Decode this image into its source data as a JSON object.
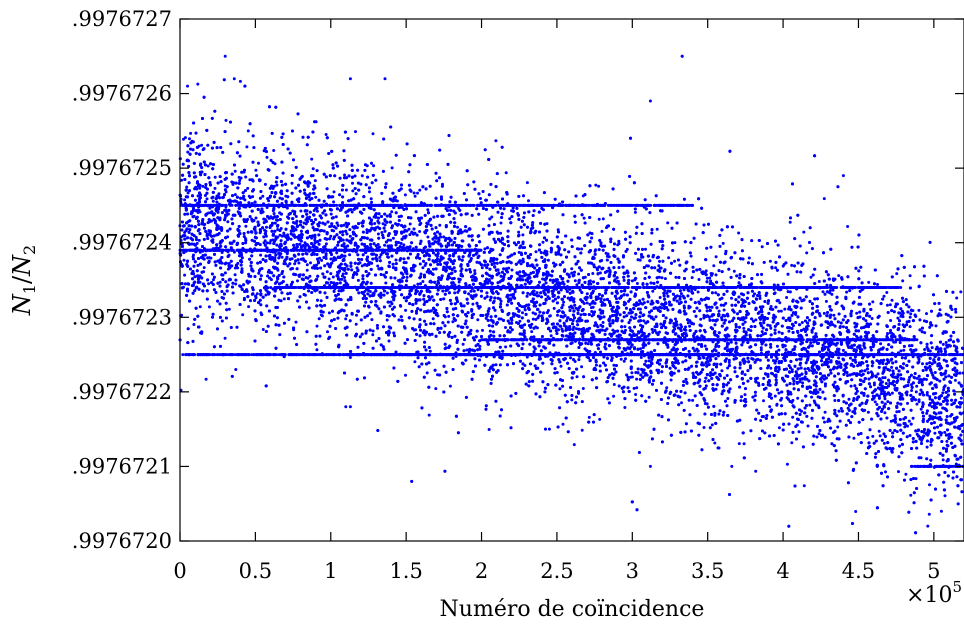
{
  "chart_data": {
    "type": "scatter",
    "title": "",
    "xlabel": "Numéro de coïncidence",
    "ylabel": {
      "base1": "N",
      "sub1": "1",
      "slash": "/",
      "base2": "N",
      "sub2": "2"
    },
    "x_multiplier": {
      "prefix": "×10",
      "exponent": "5"
    },
    "xlim": [
      0,
      5.2
    ],
    "ylim": [
      0.997672,
      0.9976727
    ],
    "x_ticks": [
      0,
      0.5,
      1,
      1.5,
      2,
      2.5,
      3,
      3.5,
      4,
      4.5,
      5
    ],
    "x_tick_labels": [
      "0",
      "0.5",
      "1",
      "1.5",
      "2",
      "2.5",
      "3",
      "3.5",
      "4",
      "4.5",
      "5"
    ],
    "y_ticks": [
      0.997672,
      0.9976721,
      0.9976722,
      0.9976723,
      0.9976724,
      0.9976725,
      0.9976726,
      0.9976727
    ],
    "y_tick_labels": [
      ".9976720",
      ".9976721",
      ".9976722",
      ".9976723",
      ".9976724",
      ".9976725",
      ".9976726",
      ".9976727"
    ],
    "grid": false,
    "marker_color": "#0000ff",
    "trend": [
      {
        "x": 0,
        "y": 0.99767242
      },
      {
        "x": 1,
        "y": 0.9976724
      },
      {
        "x": 2,
        "y": 0.99767234
      },
      {
        "x": 3,
        "y": 0.9976723
      },
      {
        "x": 4,
        "y": 0.99767226
      },
      {
        "x": 4.5,
        "y": 0.99767224
      },
      {
        "x": 5,
        "y": 0.9976722
      },
      {
        "x": 5.2,
        "y": 0.99767219
      }
    ],
    "bands": [
      {
        "y": 0.99767225,
        "x_start": 0,
        "x_end": 3.4
      },
      {
        "y": 0.99767245,
        "x_start": 0,
        "x_end": 3.4
      },
      {
        "y": 0.99767239,
        "x_start": 0,
        "x_end": 2.0
      },
      {
        "y": 0.99767234,
        "x_start": 0.6,
        "x_end": 4.8
      },
      {
        "y": 0.99767227,
        "x_start": 2.0,
        "x_end": 4.9
      },
      {
        "y": 0.99767225,
        "x_start": 1.1,
        "x_end": 5.2
      },
      {
        "y": 0.9976721,
        "x_start": 4.85,
        "x_end": 5.2
      }
    ],
    "points": [
      {
        "x": 0.05,
        "y": 0.99767261
      },
      {
        "x": 0.3,
        "y": 0.99767265
      },
      {
        "x": 0.36,
        "y": 0.99767262
      },
      {
        "x": 1.13,
        "y": 0.99767262
      },
      {
        "x": 1.36,
        "y": 0.99767262
      },
      {
        "x": 3.12,
        "y": 0.99767259
      },
      {
        "x": 4.4,
        "y": 0.99767249
      },
      {
        "x": 1.1,
        "y": 0.99767218
      },
      {
        "x": 1.13,
        "y": 0.99767218
      },
      {
        "x": 0.37,
        "y": 0.99767223
      },
      {
        "x": 3.12,
        "y": 0.9976721
      },
      {
        "x": 3.66,
        "y": 0.9976721
      },
      {
        "x": 4.96,
        "y": 0.99767202
      },
      {
        "x": 5.05,
        "y": 0.99767204
      },
      {
        "x": 2.45,
        "y": 0.99767215
      }
    ],
    "series": [
      {
        "marker": "dot",
        "color": "#0000ff",
        "count": 14000,
        "noise_sd": 6e-08
      }
    ]
  }
}
